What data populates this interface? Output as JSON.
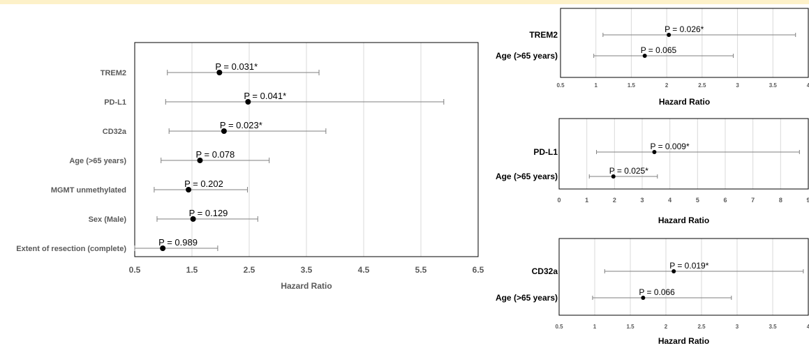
{
  "page": {
    "top_band_color": "#fdf1c9"
  },
  "colors": {
    "frame": "#000000",
    "grid": "#d9d9d9",
    "whisker": "#7f7f7f",
    "point": "#000000",
    "axis_text": "#595959",
    "row_text_main": "#595959",
    "row_text_small": "#000000"
  },
  "chart_data": [
    {
      "id": "main",
      "type": "forest",
      "xlabel": "Hazard Ratio",
      "xlim": [
        0.5,
        6.5
      ],
      "xticks": [
        0.5,
        1.5,
        2.5,
        3.5,
        4.5,
        5.5,
        6.5
      ],
      "xtick_labels": [
        "0.5",
        "1.5",
        "2.5",
        "3.5",
        "4.5",
        "5.5",
        "6.5"
      ],
      "grid": true,
      "rows": [
        {
          "label": "TREM2",
          "hr": 1.98,
          "lo": 1.07,
          "hi": 3.72,
          "p_label": "P = 0.031*"
        },
        {
          "label": "PD-L1",
          "hr": 2.48,
          "lo": 1.04,
          "hi": 5.9,
          "p_label": "P = 0.041*"
        },
        {
          "label": "CD32a",
          "hr": 2.06,
          "lo": 1.1,
          "hi": 3.84,
          "p_label": "P = 0.023*"
        },
        {
          "label": "Age (>65 years)",
          "hr": 1.64,
          "lo": 0.96,
          "hi": 2.85,
          "p_label": "P = 0.078"
        },
        {
          "label": "MGMT unmethylated",
          "hr": 1.44,
          "lo": 0.84,
          "hi": 2.47,
          "p_label": "P = 0.202"
        },
        {
          "label": "Sex (Male)",
          "hr": 1.52,
          "lo": 0.89,
          "hi": 2.65,
          "p_label": "P = 0.129"
        },
        {
          "label": "Extent of resection (complete)",
          "hr": 0.99,
          "lo": 0.5,
          "hi": 1.95,
          "p_label": "P = 0.989"
        }
      ]
    },
    {
      "id": "trem2",
      "type": "forest",
      "xlabel": "Hazard Ratio",
      "xlim": [
        0.5,
        4
      ],
      "xticks": [
        0.5,
        1,
        1.5,
        2,
        2.5,
        3,
        3.5,
        4
      ],
      "xtick_labels": [
        "0.5",
        "1",
        "1.5",
        "2",
        "2.5",
        "3",
        "3.5",
        "4"
      ],
      "grid": true,
      "rows": [
        {
          "label": "TREM2",
          "hr": 2.03,
          "lo": 1.1,
          "hi": 3.82,
          "p_label": "P = 0.026*"
        },
        {
          "label": "Age (>65 years)",
          "hr": 1.69,
          "lo": 0.97,
          "hi": 2.94,
          "p_label": "P = 0.065"
        }
      ]
    },
    {
      "id": "pdl1",
      "type": "forest",
      "xlabel": "Hazard Ratio",
      "xlim": [
        0,
        9
      ],
      "xticks": [
        0,
        1,
        2,
        3,
        4,
        5,
        6,
        7,
        8,
        9
      ],
      "xtick_labels": [
        "0",
        "1",
        "2",
        "3",
        "4",
        "5",
        "6",
        "7",
        "8",
        "9"
      ],
      "grid": true,
      "rows": [
        {
          "label": "PD-L1",
          "hr": 3.44,
          "lo": 1.35,
          "hi": 8.68,
          "p_label": "P = 0.009*"
        },
        {
          "label": "Age (>65 years)",
          "hr": 1.96,
          "lo": 1.09,
          "hi": 3.55,
          "p_label": "P = 0.025*"
        }
      ]
    },
    {
      "id": "cd32a",
      "type": "forest",
      "xlabel": "Hazard Ratio",
      "xlim": [
        0.5,
        4
      ],
      "xticks": [
        0.5,
        1,
        1.5,
        2,
        2.5,
        3,
        3.5,
        4
      ],
      "xtick_labels": [
        "0.5",
        "1",
        "1.5",
        "2",
        "2.5",
        "3",
        "3.5",
        "4"
      ],
      "grid": true,
      "rows": [
        {
          "label": "CD32a",
          "hr": 2.11,
          "lo": 1.14,
          "hi": 3.93,
          "p_label": "P = 0.019*"
        },
        {
          "label": "Age (>65 years)",
          "hr": 1.68,
          "lo": 0.97,
          "hi": 2.92,
          "p_label": "P = 0.066"
        }
      ]
    }
  ]
}
